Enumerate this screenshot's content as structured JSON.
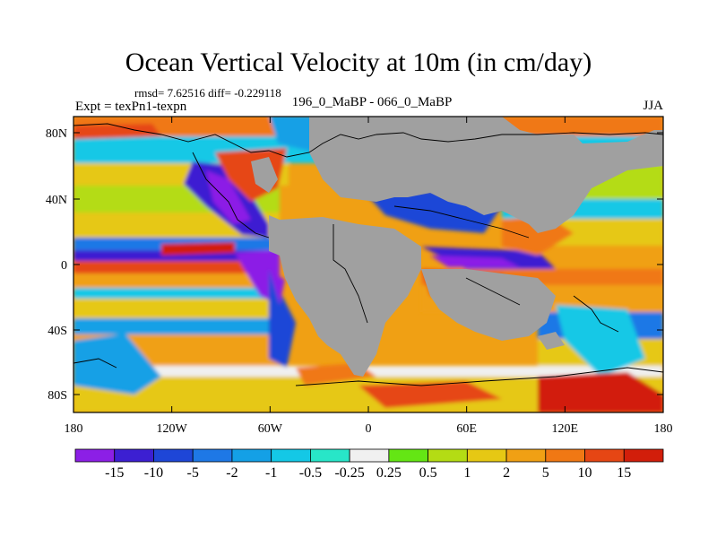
{
  "map": {
    "title": "Ocean Vertical Velocity at 10m (in cm/day)",
    "stats": "rmsd= 7.62516 diff= -0.229118",
    "experiment": "Expt = texPn1-texpn",
    "comparison": "196_0_MaBP - 066_0_MaBP",
    "season": "JJA",
    "lat_ticks": [
      "80N",
      "40N",
      "0",
      "40S",
      "80S"
    ],
    "lon_ticks": [
      "180",
      "120W",
      "60W",
      "0",
      "60E",
      "120E",
      "180"
    ],
    "land_color": "#a0a0a0"
  },
  "colorbar": {
    "labels": [
      "-15",
      "-10",
      "-5",
      "-2",
      "-1",
      "-0.5",
      "-0.25",
      "0.25",
      "0.5",
      "1",
      "2",
      "5",
      "10",
      "15"
    ],
    "colors": [
      "#8c1fe6",
      "#3c1fd2",
      "#1e46d7",
      "#1e78e6",
      "#14a0e6",
      "#14c8e6",
      "#28e6c8",
      "#f0f0f0",
      "#64e614",
      "#b4dc14",
      "#e6c814",
      "#f0a014",
      "#f07814",
      "#e64614",
      "#d21e0a"
    ]
  }
}
